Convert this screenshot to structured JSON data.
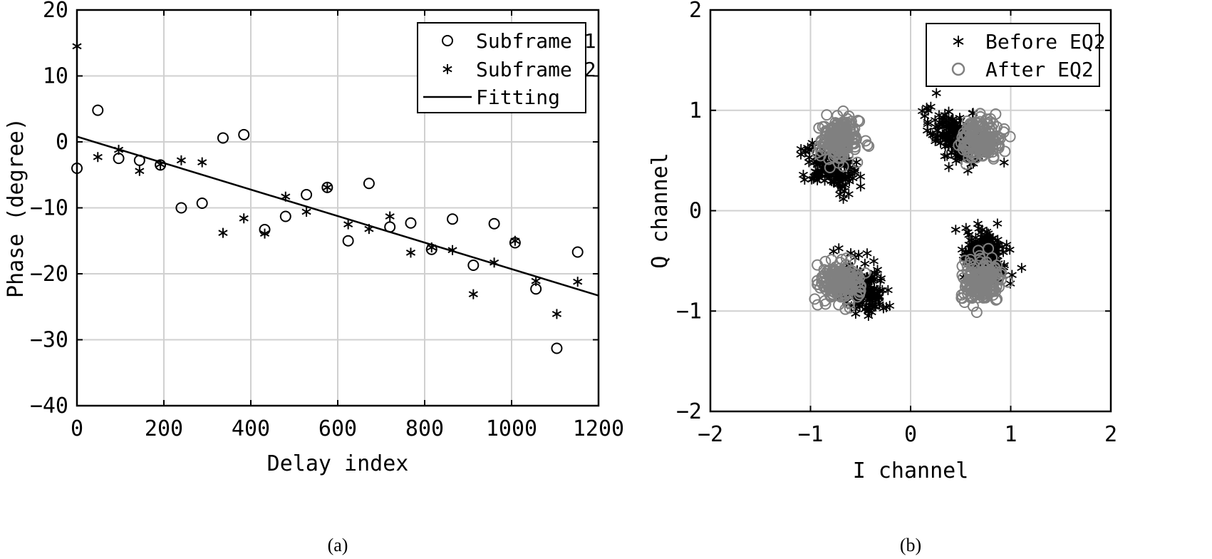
{
  "chart_data": [
    {
      "panel": "(a)",
      "type": "scatter",
      "xlabel": "Delay index",
      "ylabel": "Phase (degree)",
      "xlim": [
        0,
        1200
      ],
      "ylim": [
        -40,
        20
      ],
      "xticks": [
        0,
        200,
        400,
        600,
        800,
        1000,
        1200
      ],
      "yticks": [
        -40,
        -30,
        -20,
        -10,
        0,
        10,
        20
      ],
      "grid": true,
      "legend_position": "top-right",
      "series": [
        {
          "name": "Subframe 1",
          "marker": "circle",
          "x": [
            0,
            48,
            96,
            144,
            192,
            240,
            288,
            336,
            384,
            432,
            480,
            528,
            576,
            624,
            672,
            720,
            768,
            816,
            864,
            912,
            960,
            1008,
            1056,
            1104,
            1152
          ],
          "y": [
            -4,
            4.8,
            -2.5,
            -2.8,
            -3.5,
            -10,
            -9.3,
            0.6,
            1.1,
            -13.3,
            -11.3,
            -8,
            -6.9,
            -15,
            -6.3,
            -12.9,
            -12.3,
            -16.3,
            -11.7,
            -18.7,
            -12.4,
            -15.3,
            -22.3,
            -31.3,
            -16.7
          ]
        },
        {
          "name": "Subframe 2",
          "marker": "asterisk",
          "x": [
            0,
            48,
            96,
            144,
            192,
            240,
            288,
            336,
            384,
            432,
            480,
            528,
            576,
            624,
            672,
            720,
            768,
            816,
            864,
            912,
            960,
            1008,
            1056,
            1104,
            1152
          ],
          "y": [
            14.5,
            -2.3,
            -1.2,
            -4.4,
            -3.4,
            -2.8,
            -3.1,
            -13.8,
            -11.6,
            -13.9,
            -8.3,
            -10.6,
            -6.9,
            -12.5,
            -13.2,
            -11.3,
            -16.8,
            -16,
            -16.4,
            -23.1,
            -18.3,
            -15,
            -21.1,
            -26.1,
            -21.2
          ]
        },
        {
          "name": "Fitting",
          "marker": "line",
          "x": [
            0,
            1200
          ],
          "y": [
            0.8,
            -23.3
          ]
        }
      ]
    },
    {
      "panel": "(b)",
      "type": "scatter",
      "xlabel": "I channel",
      "ylabel": "Q channel",
      "xlim": [
        -2,
        2
      ],
      "ylim": [
        -2,
        2
      ],
      "xticks": [
        -2,
        -1,
        0,
        1,
        2
      ],
      "yticks": [
        -2,
        -1,
        0,
        1,
        2
      ],
      "grid": true,
      "legend_position": "top-right",
      "series": [
        {
          "name": "Before EQ2",
          "marker": "asterisk",
          "color": "#000000",
          "clusters": [
            {
              "center": [
                0.45,
                0.75
              ],
              "spread": [
                0.17,
                0.11
              ],
              "rotation_deg": -38,
              "points": 160
            },
            {
              "center": [
                -0.78,
                0.42
              ],
              "spread": [
                0.13,
                0.1
              ],
              "rotation_deg": -38,
              "points": 160
            },
            {
              "center": [
                -0.48,
                -0.78
              ],
              "spread": [
                0.17,
                0.11
              ],
              "rotation_deg": -38,
              "points": 160
            },
            {
              "center": [
                0.75,
                -0.42
              ],
              "spread": [
                0.13,
                0.1
              ],
              "rotation_deg": -38,
              "points": 160
            }
          ]
        },
        {
          "name": "After EQ2",
          "marker": "circle",
          "color": "#808080",
          "clusters": [
            {
              "center": [
                0.71,
                0.71
              ],
              "spread": [
                0.1,
                0.1
              ],
              "rotation_deg": 0,
              "points": 180
            },
            {
              "center": [
                -0.71,
                0.71
              ],
              "spread": [
                0.1,
                0.1
              ],
              "rotation_deg": 0,
              "points": 180
            },
            {
              "center": [
                -0.71,
                -0.71
              ],
              "spread": [
                0.1,
                0.1
              ],
              "rotation_deg": 0,
              "points": 180
            },
            {
              "center": [
                0.71,
                -0.71
              ],
              "spread": [
                0.1,
                0.1
              ],
              "rotation_deg": 0,
              "points": 180
            }
          ]
        }
      ]
    }
  ]
}
